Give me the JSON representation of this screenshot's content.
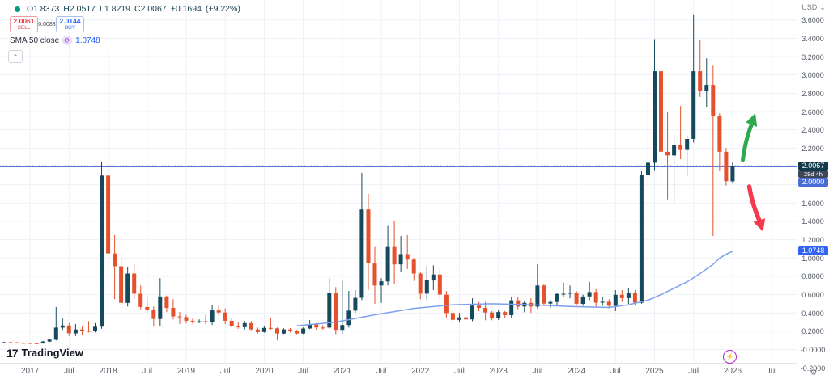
{
  "legend": {
    "status_dot_color": "#089981",
    "ohlc": [
      {
        "label": "O",
        "value": "1.8373"
      },
      {
        "label": "H",
        "value": "2.0517"
      },
      {
        "label": "L",
        "value": "1.8219"
      },
      {
        "label": "C",
        "value": "2.0067"
      }
    ],
    "change_abs": "+0.1694",
    "change_pct": "(+9.22%)"
  },
  "order_panel": {
    "sell_price": "2.0061",
    "sell_label": "SELL",
    "spread": "0.0083",
    "buy_price": "2.0144",
    "buy_label": "BUY"
  },
  "indicator": {
    "name": "SMA 50 close",
    "icon": "loop-icon",
    "value": "1.0748"
  },
  "collapse_button": "⌃",
  "price_scale": {
    "currency": "USD",
    "ticks": [
      "3.6000",
      "3.4000",
      "3.2000",
      "3.0000",
      "2.8000",
      "2.6000",
      "2.4000",
      "2.2000",
      "2.0000",
      "1.8000",
      "1.6000",
      "1.4000",
      "1.2000",
      "1.0000",
      "0.8000",
      "0.6000",
      "0.4000",
      "0.2000",
      "-0.0000",
      "-0.2000"
    ],
    "current_price_label": "2.0067",
    "countdown": "28d 4h",
    "line_price_label": "2.0000",
    "sma_price_label": "1.0748"
  },
  "time_scale": {
    "labels": [
      "2017",
      "Jul",
      "2018",
      "Jul",
      "2019",
      "Jul",
      "2020",
      "Jul",
      "2021",
      "Jul",
      "2022",
      "Jul",
      "2023",
      "Jul",
      "2024",
      "Jul",
      "2025",
      "Jul",
      "2026",
      "Jul"
    ]
  },
  "watermark": "TradingView",
  "chart_data": {
    "type": "candlestick",
    "interval": "monthly",
    "quote_currency": "USD",
    "ylim": [
      -0.2,
      3.6
    ],
    "grid": true,
    "horizontal_line": 2.0,
    "current_price": 2.0067,
    "sma50_last": 1.0748,
    "colors": {
      "up": "#16495c",
      "down": "#e5512c",
      "line": "#5a78d8",
      "sma": "#7da0ee",
      "grid": "#eef1f8",
      "up_arrow": "#2fa94f",
      "down_arrow": "#f43a4e",
      "price_badge_bg": "#123a4a",
      "countdown_bg": "#3f4656",
      "line_badge_bg": "#4a6cd6",
      "sma_badge_bg": "#2f62f5"
    },
    "annotations": [
      {
        "type": "arrow",
        "direction": "up",
        "color_key": "up_arrow"
      },
      {
        "type": "arrow",
        "direction": "down",
        "color_key": "down_arrow"
      }
    ],
    "candles": [
      [
        "2016-09",
        0.08,
        0.086,
        0.074,
        0.08
      ],
      [
        "2016-10",
        0.08,
        0.086,
        0.072,
        0.078
      ],
      [
        "2016-11",
        0.078,
        0.082,
        0.068,
        0.073
      ],
      [
        "2016-12",
        0.073,
        0.078,
        0.066,
        0.071
      ],
      [
        "2017-01",
        0.071,
        0.076,
        0.064,
        0.069
      ],
      [
        "2017-02",
        0.069,
        0.074,
        0.062,
        0.067
      ],
      [
        "2017-03",
        0.067,
        0.095,
        0.064,
        0.088
      ],
      [
        "2017-04",
        0.088,
        0.12,
        0.082,
        0.108
      ],
      [
        "2017-05",
        0.108,
        0.465,
        0.1,
        0.24
      ],
      [
        "2017-06",
        0.24,
        0.34,
        0.215,
        0.263
      ],
      [
        "2017-07",
        0.263,
        0.29,
        0.15,
        0.178
      ],
      [
        "2017-08",
        0.178,
        0.28,
        0.148,
        0.22
      ],
      [
        "2017-09",
        0.22,
        0.25,
        0.158,
        0.205
      ],
      [
        "2017-10",
        0.205,
        0.31,
        0.188,
        0.204
      ],
      [
        "2017-11",
        0.204,
        0.29,
        0.188,
        0.25
      ],
      [
        "2017-12",
        0.25,
        2.05,
        0.228,
        1.9
      ],
      [
        "2018-01",
        1.9,
        3.25,
        0.87,
        1.05
      ],
      [
        "2018-02",
        1.05,
        1.25,
        0.55,
        0.91
      ],
      [
        "2018-03",
        0.91,
        1.0,
        0.48,
        0.51
      ],
      [
        "2018-04",
        0.51,
        0.9,
        0.47,
        0.83
      ],
      [
        "2018-05",
        0.83,
        0.93,
        0.55,
        0.61
      ],
      [
        "2018-06",
        0.61,
        0.7,
        0.44,
        0.465
      ],
      [
        "2018-07",
        0.465,
        0.58,
        0.4,
        0.435
      ],
      [
        "2018-08",
        0.435,
        0.47,
        0.25,
        0.335
      ],
      [
        "2018-09",
        0.335,
        0.78,
        0.26,
        0.58
      ],
      [
        "2018-10",
        0.58,
        0.59,
        0.41,
        0.455
      ],
      [
        "2018-11",
        0.455,
        0.55,
        0.33,
        0.362
      ],
      [
        "2018-12",
        0.362,
        0.41,
        0.28,
        0.355
      ],
      [
        "2019-01",
        0.355,
        0.38,
        0.285,
        0.315
      ],
      [
        "2019-02",
        0.315,
        0.34,
        0.28,
        0.308
      ],
      [
        "2019-03",
        0.308,
        0.33,
        0.288,
        0.31
      ],
      [
        "2019-04",
        0.31,
        0.38,
        0.278,
        0.298
      ],
      [
        "2019-05",
        0.298,
        0.49,
        0.268,
        0.428
      ],
      [
        "2019-06",
        0.428,
        0.49,
        0.375,
        0.405
      ],
      [
        "2019-07",
        0.405,
        0.45,
        0.278,
        0.315
      ],
      [
        "2019-08",
        0.315,
        0.34,
        0.245,
        0.256
      ],
      [
        "2019-09",
        0.256,
        0.3,
        0.228,
        0.245
      ],
      [
        "2019-10",
        0.245,
        0.312,
        0.22,
        0.288
      ],
      [
        "2019-11",
        0.288,
        0.312,
        0.212,
        0.22
      ],
      [
        "2019-12",
        0.22,
        0.24,
        0.175,
        0.192
      ],
      [
        "2020-01",
        0.192,
        0.252,
        0.185,
        0.236
      ],
      [
        "2020-02",
        0.236,
        0.348,
        0.218,
        0.232
      ],
      [
        "2020-03",
        0.232,
        0.242,
        0.1,
        0.176
      ],
      [
        "2020-04",
        0.176,
        0.232,
        0.17,
        0.22
      ],
      [
        "2020-05",
        0.22,
        0.236,
        0.188,
        0.201
      ],
      [
        "2020-06",
        0.201,
        0.215,
        0.168,
        0.176
      ],
      [
        "2020-07",
        0.176,
        0.242,
        0.17,
        0.23
      ],
      [
        "2020-08",
        0.23,
        0.322,
        0.224,
        0.274
      ],
      [
        "2020-09",
        0.274,
        0.29,
        0.218,
        0.241
      ],
      [
        "2020-10",
        0.241,
        0.266,
        0.219,
        0.24
      ],
      [
        "2020-11",
        0.24,
        0.78,
        0.228,
        0.62
      ],
      [
        "2020-12",
        0.62,
        0.682,
        0.168,
        0.215
      ],
      [
        "2021-01",
        0.215,
        0.75,
        0.17,
        0.268
      ],
      [
        "2021-02",
        0.268,
        0.64,
        0.24,
        0.426
      ],
      [
        "2021-03",
        0.426,
        0.65,
        0.4,
        0.565
      ],
      [
        "2021-04",
        0.565,
        1.93,
        0.54,
        1.53
      ],
      [
        "2021-05",
        1.53,
        1.7,
        0.65,
        0.94
      ],
      [
        "2021-06",
        0.94,
        1.12,
        0.5,
        0.7
      ],
      [
        "2021-07",
        0.7,
        0.78,
        0.51,
        0.745
      ],
      [
        "2021-08",
        0.745,
        1.35,
        0.7,
        1.12
      ],
      [
        "2021-09",
        1.12,
        1.41,
        0.72,
        0.93
      ],
      [
        "2021-10",
        0.93,
        1.24,
        0.85,
        1.042
      ],
      [
        "2021-11",
        1.042,
        1.25,
        0.88,
        0.982
      ],
      [
        "2021-12",
        0.982,
        1.0,
        0.75,
        0.83
      ],
      [
        "2022-01",
        0.83,
        0.85,
        0.55,
        0.61
      ],
      [
        "2022-02",
        0.61,
        0.91,
        0.54,
        0.755
      ],
      [
        "2022-03",
        0.755,
        0.92,
        0.65,
        0.82
      ],
      [
        "2022-04",
        0.82,
        0.88,
        0.56,
        0.6
      ],
      [
        "2022-05",
        0.6,
        0.64,
        0.34,
        0.4
      ],
      [
        "2022-06",
        0.4,
        0.45,
        0.28,
        0.325
      ],
      [
        "2022-07",
        0.325,
        0.4,
        0.3,
        0.352
      ],
      [
        "2022-08",
        0.352,
        0.395,
        0.318,
        0.33
      ],
      [
        "2022-09",
        0.33,
        0.56,
        0.31,
        0.48
      ],
      [
        "2022-10",
        0.48,
        0.52,
        0.42,
        0.455
      ],
      [
        "2022-11",
        0.455,
        0.52,
        0.32,
        0.405
      ],
      [
        "2022-12",
        0.405,
        0.42,
        0.32,
        0.34
      ],
      [
        "2023-01",
        0.34,
        0.432,
        0.324,
        0.41
      ],
      [
        "2023-02",
        0.41,
        0.422,
        0.35,
        0.376
      ],
      [
        "2023-03",
        0.376,
        0.58,
        0.34,
        0.538
      ],
      [
        "2023-04",
        0.538,
        0.58,
        0.44,
        0.47
      ],
      [
        "2023-05",
        0.47,
        0.53,
        0.408,
        0.51
      ],
      [
        "2023-06",
        0.51,
        0.56,
        0.4,
        0.47
      ],
      [
        "2023-07",
        0.47,
        0.93,
        0.45,
        0.7
      ],
      [
        "2023-08",
        0.7,
        0.72,
        0.48,
        0.502
      ],
      [
        "2023-09",
        0.502,
        0.54,
        0.458,
        0.52
      ],
      [
        "2023-10",
        0.52,
        0.62,
        0.478,
        0.608
      ],
      [
        "2023-11",
        0.608,
        0.73,
        0.578,
        0.61
      ],
      [
        "2023-12",
        0.61,
        0.7,
        0.56,
        0.622
      ],
      [
        "2024-01",
        0.622,
        0.64,
        0.48,
        0.5
      ],
      [
        "2024-02",
        0.5,
        0.6,
        0.478,
        0.58
      ],
      [
        "2024-03",
        0.58,
        0.74,
        0.54,
        0.628
      ],
      [
        "2024-04",
        0.628,
        0.66,
        0.46,
        0.512
      ],
      [
        "2024-05",
        0.512,
        0.58,
        0.478,
        0.522
      ],
      [
        "2024-06",
        0.522,
        0.55,
        0.45,
        0.478
      ],
      [
        "2024-07",
        0.478,
        0.65,
        0.42,
        0.598
      ],
      [
        "2024-08",
        0.598,
        0.65,
        0.52,
        0.562
      ],
      [
        "2024-09",
        0.562,
        0.67,
        0.5,
        0.62
      ],
      [
        "2024-10",
        0.62,
        0.65,
        0.49,
        0.512
      ],
      [
        "2024-11",
        0.512,
        1.95,
        0.5,
        1.91
      ],
      [
        "2024-12",
        1.91,
        2.88,
        1.78,
        2.04
      ],
      [
        "2025-01",
        2.04,
        3.39,
        1.96,
        3.04
      ],
      [
        "2025-02",
        3.04,
        3.1,
        1.77,
        2.16
      ],
      [
        "2025-03",
        2.16,
        2.6,
        1.64,
        2.12
      ],
      [
        "2025-04",
        2.12,
        2.35,
        1.61,
        2.23
      ],
      [
        "2025-05",
        2.23,
        2.66,
        2.08,
        2.18
      ],
      [
        "2025-06",
        2.18,
        2.34,
        1.89,
        2.3
      ],
      [
        "2025-07",
        2.3,
        3.66,
        2.26,
        3.04
      ],
      [
        "2025-08",
        3.04,
        3.38,
        2.76,
        2.82
      ],
      [
        "2025-09",
        2.82,
        3.18,
        2.65,
        2.89
      ],
      [
        "2025-10",
        2.89,
        3.1,
        1.24,
        2.55
      ],
      [
        "2025-11",
        2.55,
        2.58,
        1.95,
        2.16
      ],
      [
        "2025-12",
        2.16,
        2.2,
        1.79,
        1.84
      ],
      [
        "2026-01",
        1.8373,
        2.0517,
        1.8219,
        2.0067
      ]
    ],
    "sma50": [
      [
        "2020-06",
        0.26
      ],
      [
        "2020-12",
        0.3
      ],
      [
        "2021-06",
        0.38
      ],
      [
        "2021-12",
        0.45
      ],
      [
        "2022-06",
        0.49
      ],
      [
        "2022-12",
        0.5
      ],
      [
        "2023-06",
        0.49
      ],
      [
        "2023-12",
        0.47
      ],
      [
        "2024-06",
        0.46
      ],
      [
        "2024-09",
        0.49
      ],
      [
        "2024-12",
        0.54
      ],
      [
        "2025-02",
        0.6
      ],
      [
        "2025-04",
        0.67
      ],
      [
        "2025-06",
        0.74
      ],
      [
        "2025-08",
        0.83
      ],
      [
        "2025-10",
        0.93
      ],
      [
        "2025-11",
        1.0
      ],
      [
        "2025-12",
        1.04
      ],
      [
        "2026-01",
        1.0748
      ]
    ]
  }
}
